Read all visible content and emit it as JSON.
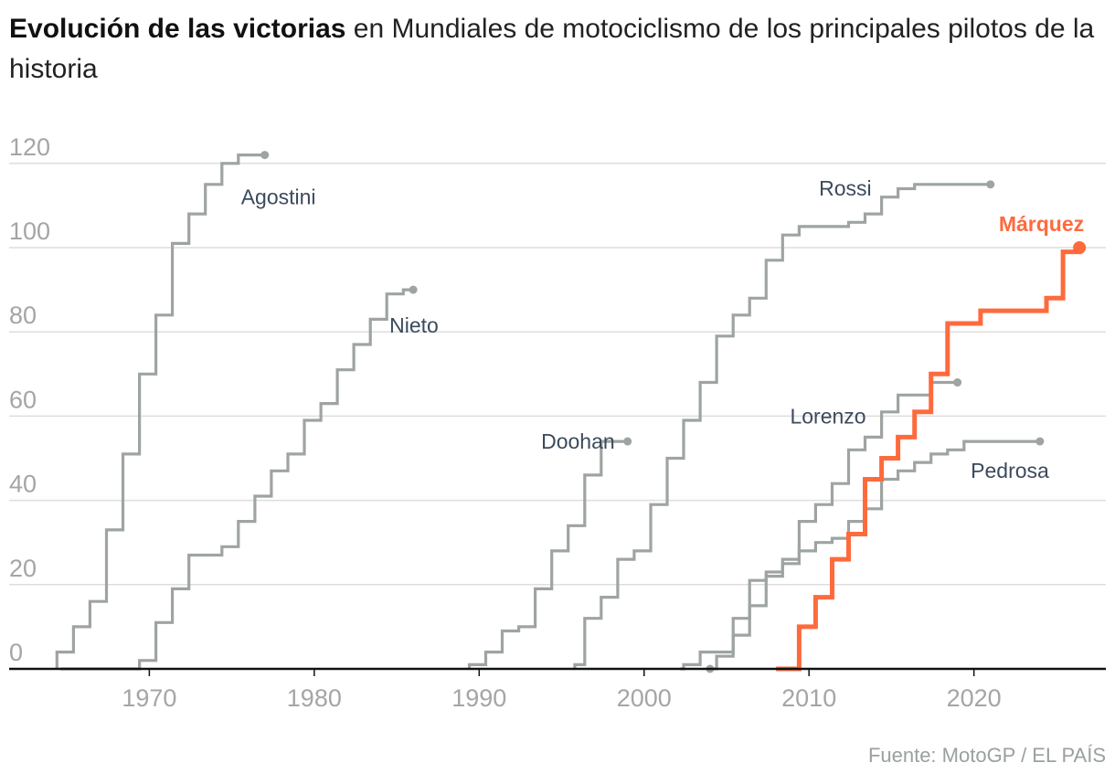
{
  "title_bold": "Evolución de las victorias",
  "title_rest": " en Mundiales de motociclismo de los principales pilotos de la historia",
  "source": "Fuente: MotoGP / EL PAÍS",
  "colors": {
    "highlight": "#ff6a3d",
    "series": "#9ea4a1",
    "grid": "#dedede",
    "axis": "#111111",
    "tick": "#a5a5a5",
    "label": "#3c4a5c"
  },
  "chart_data": {
    "type": "line",
    "step": true,
    "xlim": [
      1961.5,
      2028
    ],
    "ylim": [
      0,
      120
    ],
    "x_ticks": [
      1970,
      1980,
      1990,
      2000,
      2010,
      2020
    ],
    "y_ticks": [
      0,
      20,
      40,
      60,
      80,
      100,
      120
    ],
    "grid": "horizontal",
    "series": [
      {
        "name": "Agostini",
        "highlight": false,
        "label_pos": "right-below",
        "points": [
          [
            1964.4,
            0
          ],
          [
            1964.4,
            4
          ],
          [
            1965.4,
            4
          ],
          [
            1965.4,
            10
          ],
          [
            1966.4,
            10
          ],
          [
            1966.4,
            16
          ],
          [
            1967.4,
            16
          ],
          [
            1967.4,
            33
          ],
          [
            1968.4,
            33
          ],
          [
            1968.4,
            51
          ],
          [
            1969.4,
            51
          ],
          [
            1969.4,
            70
          ],
          [
            1970.4,
            70
          ],
          [
            1970.4,
            84
          ],
          [
            1971.4,
            84
          ],
          [
            1971.4,
            101
          ],
          [
            1972.4,
            101
          ],
          [
            1972.4,
            108
          ],
          [
            1973.4,
            108
          ],
          [
            1973.4,
            115
          ],
          [
            1974.4,
            115
          ],
          [
            1974.4,
            120
          ],
          [
            1975.4,
            120
          ],
          [
            1975.4,
            122
          ],
          [
            1977,
            122
          ]
        ]
      },
      {
        "name": "Nieto",
        "highlight": false,
        "label_pos": "right-below",
        "points": [
          [
            1964.6,
            0
          ],
          [
            1969.4,
            0
          ],
          [
            1969.4,
            2
          ],
          [
            1970.4,
            2
          ],
          [
            1970.4,
            11
          ],
          [
            1971.4,
            11
          ],
          [
            1971.4,
            19
          ],
          [
            1972.4,
            19
          ],
          [
            1972.4,
            27
          ],
          [
            1974.4,
            27
          ],
          [
            1974.4,
            29
          ],
          [
            1975.4,
            29
          ],
          [
            1975.4,
            35
          ],
          [
            1976.4,
            35
          ],
          [
            1976.4,
            41
          ],
          [
            1977.4,
            41
          ],
          [
            1977.4,
            47
          ],
          [
            1978.4,
            47
          ],
          [
            1978.4,
            51
          ],
          [
            1979.4,
            51
          ],
          [
            1979.4,
            59
          ],
          [
            1980.4,
            59
          ],
          [
            1980.4,
            63
          ],
          [
            1981.4,
            63
          ],
          [
            1981.4,
            71
          ],
          [
            1982.4,
            71
          ],
          [
            1982.4,
            77
          ],
          [
            1983.4,
            77
          ],
          [
            1983.4,
            83
          ],
          [
            1984.4,
            83
          ],
          [
            1984.4,
            89
          ],
          [
            1985.4,
            89
          ],
          [
            1985.4,
            90
          ],
          [
            1986,
            90
          ]
        ]
      },
      {
        "name": "Doohan",
        "highlight": false,
        "label_pos": "left",
        "points": [
          [
            1989.4,
            0
          ],
          [
            1989.4,
            1
          ],
          [
            1990.4,
            1
          ],
          [
            1990.4,
            4
          ],
          [
            1991.4,
            4
          ],
          [
            1991.4,
            9
          ],
          [
            1992.4,
            9
          ],
          [
            1992.4,
            10
          ],
          [
            1993.4,
            10
          ],
          [
            1993.4,
            19
          ],
          [
            1994.4,
            19
          ],
          [
            1994.4,
            28
          ],
          [
            1995.4,
            28
          ],
          [
            1995.4,
            34
          ],
          [
            1996.4,
            34
          ],
          [
            1996.4,
            46
          ],
          [
            1997.4,
            46
          ],
          [
            1997.4,
            54
          ],
          [
            1999,
            54
          ]
        ]
      },
      {
        "name": "Rossi",
        "highlight": false,
        "label_pos": "left",
        "points": [
          [
            1995.8,
            0
          ],
          [
            1995.8,
            1
          ],
          [
            1996.4,
            1
          ],
          [
            1996.4,
            12
          ],
          [
            1997.4,
            12
          ],
          [
            1997.4,
            17
          ],
          [
            1998.4,
            17
          ],
          [
            1998.4,
            26
          ],
          [
            1999.4,
            26
          ],
          [
            1999.4,
            28
          ],
          [
            2000.4,
            28
          ],
          [
            2000.4,
            39
          ],
          [
            2001.4,
            39
          ],
          [
            2001.4,
            50
          ],
          [
            2002.4,
            50
          ],
          [
            2002.4,
            59
          ],
          [
            2003.4,
            59
          ],
          [
            2003.4,
            68
          ],
          [
            2004.4,
            68
          ],
          [
            2004.4,
            79
          ],
          [
            2005.4,
            79
          ],
          [
            2005.4,
            84
          ],
          [
            2006.4,
            84
          ],
          [
            2006.4,
            88
          ],
          [
            2007.4,
            88
          ],
          [
            2007.4,
            97
          ],
          [
            2008.4,
            97
          ],
          [
            2008.4,
            103
          ],
          [
            2009.4,
            103
          ],
          [
            2009.4,
            105
          ],
          [
            2012.4,
            105
          ],
          [
            2012.4,
            106
          ],
          [
            2013.4,
            106
          ],
          [
            2013.4,
            108
          ],
          [
            2014.4,
            108
          ],
          [
            2014.4,
            112
          ],
          [
            2015.4,
            112
          ],
          [
            2015.4,
            114
          ],
          [
            2016.4,
            114
          ],
          [
            2016.4,
            115
          ],
          [
            2021,
            115
          ]
        ]
      },
      {
        "name": "Lorenzo",
        "highlight": false,
        "label_pos": "left",
        "points": [
          [
            2002.2,
            0
          ],
          [
            2002.4,
            0
          ],
          [
            2002.4,
            1
          ],
          [
            2003.4,
            1
          ],
          [
            2003.4,
            4
          ],
          [
            2005.4,
            4
          ],
          [
            2005.4,
            12
          ],
          [
            2006.4,
            12
          ],
          [
            2006.4,
            21
          ],
          [
            2007.4,
            21
          ],
          [
            2007.4,
            23
          ],
          [
            2008.4,
            23
          ],
          [
            2008.4,
            25
          ],
          [
            2009.4,
            25
          ],
          [
            2009.4,
            35
          ],
          [
            2010.4,
            35
          ],
          [
            2010.4,
            39
          ],
          [
            2011.4,
            39
          ],
          [
            2011.4,
            44
          ],
          [
            2012.4,
            44
          ],
          [
            2012.4,
            52
          ],
          [
            2013.4,
            52
          ],
          [
            2013.4,
            55
          ],
          [
            2014.4,
            55
          ],
          [
            2014.4,
            61
          ],
          [
            2015.4,
            61
          ],
          [
            2015.4,
            65
          ],
          [
            2017.4,
            65
          ],
          [
            2017.4,
            68
          ],
          [
            2019,
            68
          ]
        ]
      },
      {
        "name": "Pedrosa",
        "highlight": false,
        "label_pos": "below",
        "points": [
          [
            2004,
            0
          ],
          [
            2004.4,
            0
          ],
          [
            2004.4,
            3
          ],
          [
            2005.4,
            3
          ],
          [
            2005.4,
            8
          ],
          [
            2006.4,
            8
          ],
          [
            2006.4,
            15
          ],
          [
            2007.4,
            15
          ],
          [
            2007.4,
            22
          ],
          [
            2008.4,
            22
          ],
          [
            2008.4,
            26
          ],
          [
            2009.4,
            26
          ],
          [
            2009.4,
            28
          ],
          [
            2010.4,
            28
          ],
          [
            2010.4,
            30
          ],
          [
            2011.4,
            30
          ],
          [
            2011.4,
            31
          ],
          [
            2012.4,
            31
          ],
          [
            2012.4,
            35
          ],
          [
            2013.4,
            35
          ],
          [
            2013.4,
            38
          ],
          [
            2014.4,
            38
          ],
          [
            2014.4,
            45
          ],
          [
            2015.4,
            45
          ],
          [
            2015.4,
            47
          ],
          [
            2016.4,
            47
          ],
          [
            2016.4,
            49
          ],
          [
            2017.4,
            49
          ],
          [
            2017.4,
            51
          ],
          [
            2018.4,
            51
          ],
          [
            2018.4,
            52
          ],
          [
            2019.4,
            52
          ],
          [
            2019.4,
            54
          ],
          [
            2024,
            54
          ]
        ]
      },
      {
        "name": "Márquez",
        "highlight": true,
        "label_pos": "above-left",
        "points": [
          [
            2008,
            0
          ],
          [
            2009.4,
            0
          ],
          [
            2009.4,
            10
          ],
          [
            2010.4,
            10
          ],
          [
            2010.4,
            17
          ],
          [
            2011.4,
            17
          ],
          [
            2011.4,
            26
          ],
          [
            2012.4,
            26
          ],
          [
            2012.4,
            32
          ],
          [
            2013.4,
            32
          ],
          [
            2013.4,
            45
          ],
          [
            2014.4,
            45
          ],
          [
            2014.4,
            50
          ],
          [
            2015.4,
            50
          ],
          [
            2015.4,
            55
          ],
          [
            2016.4,
            55
          ],
          [
            2016.4,
            61
          ],
          [
            2017.4,
            61
          ],
          [
            2017.4,
            70
          ],
          [
            2018.4,
            70
          ],
          [
            2018.4,
            82
          ],
          [
            2020.4,
            82
          ],
          [
            2020.4,
            85
          ],
          [
            2024.4,
            85
          ],
          [
            2024.4,
            88
          ],
          [
            2025.4,
            88
          ],
          [
            2025.4,
            99
          ],
          [
            2026.4,
            99
          ],
          [
            2026.4,
            100
          ]
        ]
      }
    ]
  }
}
